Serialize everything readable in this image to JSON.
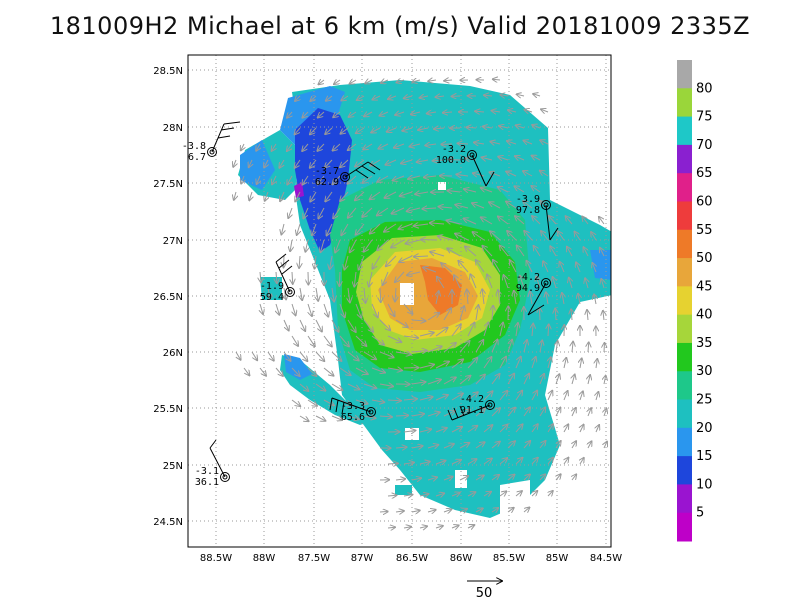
{
  "title": "181009H2 Michael at 6 km (m/s) Valid 20181009  2335Z",
  "map": {
    "lon_range": [
      -88.75,
      -84.5
    ],
    "lat_range": [
      24.3,
      28.6
    ],
    "lon_ticks": [
      "88.5W",
      "88W",
      "87.5W",
      "87W",
      "86.5W",
      "86W",
      "85.5W",
      "85W",
      "84.5W"
    ],
    "lat_ticks": [
      "28.5N",
      "28N",
      "27.5N",
      "27N",
      "26.5N",
      "26N",
      "25.5N",
      "25N",
      "24.5N"
    ],
    "grid": true
  },
  "colorbar": {
    "labels": [
      "80",
      "75",
      "70",
      "65",
      "60",
      "55",
      "50",
      "45",
      "40",
      "35",
      "30",
      "25",
      "20",
      "15",
      "10",
      "5"
    ],
    "colors": [
      "#a8a8a8",
      "#9ad63a",
      "#1ec8c8",
      "#8a20d0",
      "#e0208a",
      "#ee3c3c",
      "#ee7a28",
      "#e8a63a",
      "#e6d230",
      "#a6d63a",
      "#22c81e",
      "#1ec88a",
      "#1ec0c0",
      "#2a96ee",
      "#1e46dc",
      "#9a14d0",
      "#be00c8"
    ]
  },
  "observations": [
    {
      "temp": "-3.8",
      "wind": "6.7"
    },
    {
      "temp": "-3.7",
      "wind": "62.9"
    },
    {
      "temp": "-3.2",
      "wind": "100.0"
    },
    {
      "temp": "-3.9",
      "wind": "97.8"
    },
    {
      "temp": "-1.9",
      "wind": "59.4"
    },
    {
      "temp": "-4.2",
      "wind": "94.9"
    },
    {
      "temp": "-3.3",
      "wind": "65.6"
    },
    {
      "temp": "-4.2",
      "wind": "91.1"
    },
    {
      "temp": "-3.1",
      "wind": "36.1"
    }
  ],
  "reference_vector": {
    "label": "50"
  },
  "icons": [
    "station-circle-icon",
    "wind-barb-icon",
    "wind-arrow-icon"
  ]
}
